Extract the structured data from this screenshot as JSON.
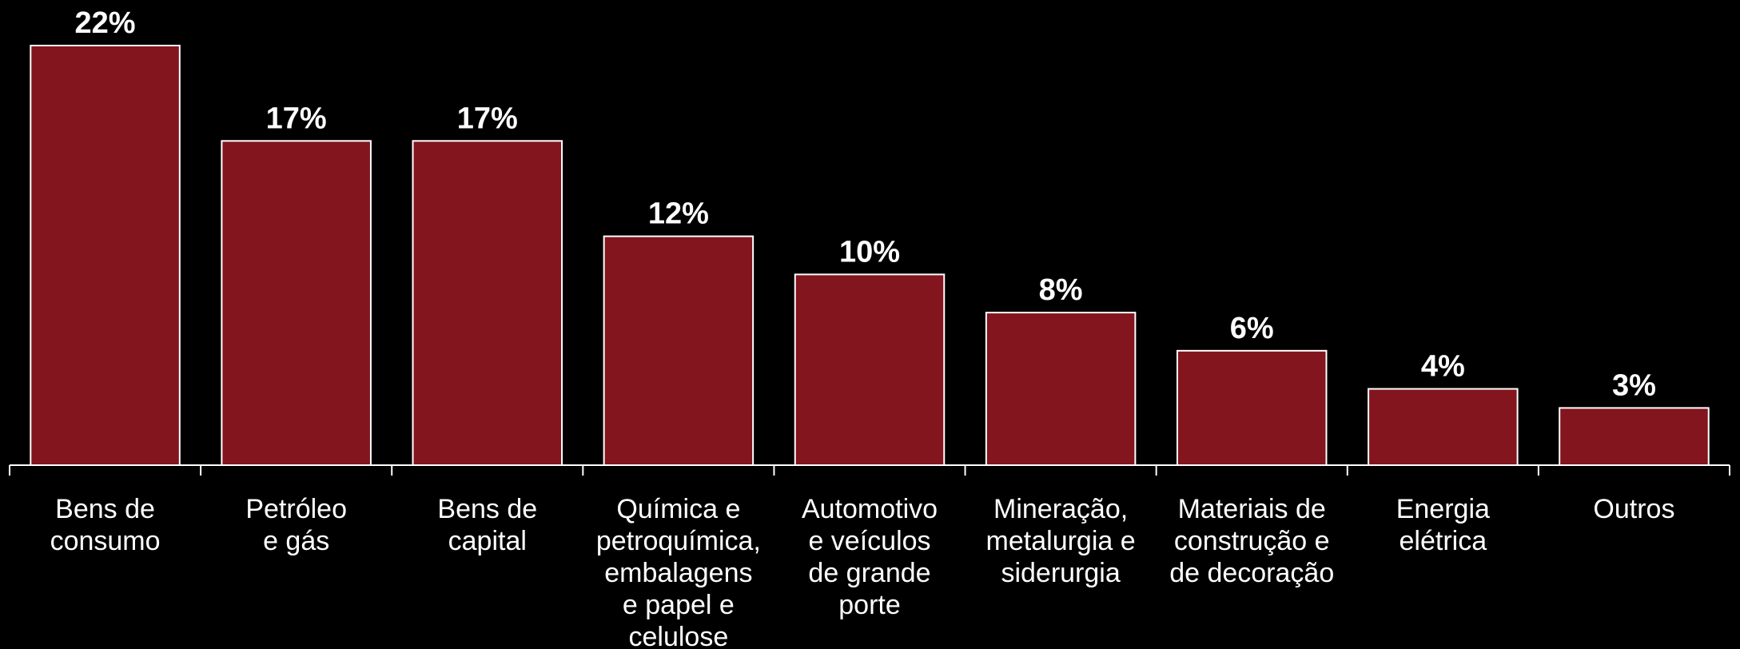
{
  "chart_data": {
    "type": "bar",
    "categories": [
      [
        "Bens de",
        "consumo"
      ],
      [
        "Petróleo",
        "e gás"
      ],
      [
        "Bens de",
        "capital"
      ],
      [
        "Química e",
        "petroquímica,",
        "embalagens",
        "e papel e",
        "celulose"
      ],
      [
        "Automotivo",
        "e veículos",
        "de grande",
        "porte"
      ],
      [
        "Mineração,",
        "metalurgia e",
        "siderurgia"
      ],
      [
        "Materiais de",
        "construção e",
        "de decoração"
      ],
      [
        "Energia",
        "elétrica"
      ],
      [
        "Outros"
      ]
    ],
    "values": [
      22,
      17,
      17,
      12,
      10,
      8,
      6,
      4,
      3
    ],
    "value_labels": [
      "22%",
      "17%",
      "17%",
      "12%",
      "10%",
      "8%",
      "6%",
      "4%",
      "3%"
    ],
    "color": "#83151f"
  }
}
